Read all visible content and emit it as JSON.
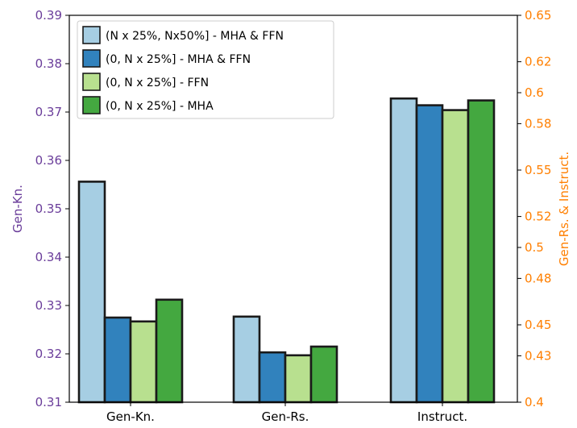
{
  "chart_data": {
    "type": "bar",
    "categories": [
      "Gen-Kn.",
      "Gen-Rs.",
      "Instruct."
    ],
    "series": [
      {
        "name": "(N x 25%, Nx50%] - MHA & FFN",
        "color": "#a6cee3",
        "values": [
          0.3556,
          0.3277,
          0.3728
        ]
      },
      {
        "name": "(0, N x 25%] - MHA & FFN",
        "color": "#3182bd",
        "values": [
          0.3275,
          0.3203,
          0.3714
        ]
      },
      {
        "name": "(0, N x 25%] - FFN",
        "color": "#b8e08f",
        "values": [
          0.3267,
          0.3197,
          0.3704
        ]
      },
      {
        "name": "(0, N x 25%] - MHA",
        "color": "#44a840",
        "values": [
          0.3312,
          0.3215,
          0.3724
        ]
      }
    ],
    "left_axis": {
      "label": "Gen-Kn.",
      "color": "#6a3d9a",
      "ylim": [
        0.31,
        0.39
      ],
      "ticks": [
        "0.31",
        "0.32",
        "0.33",
        "0.34",
        "0.35",
        "0.36",
        "0.37",
        "0.38",
        "0.39"
      ]
    },
    "right_axis": {
      "label": "Gen-Rs. & Instruct.",
      "color": "#ff7f00",
      "ylim": [
        0.4,
        0.65
      ],
      "ticks": [
        "0.4",
        "0.43",
        "0.45",
        "0.48",
        "0.5",
        "0.52",
        "0.55",
        "0.58",
        "0.6",
        "0.62",
        "0.65"
      ]
    },
    "legend_position": "top-left",
    "grid": false
  }
}
